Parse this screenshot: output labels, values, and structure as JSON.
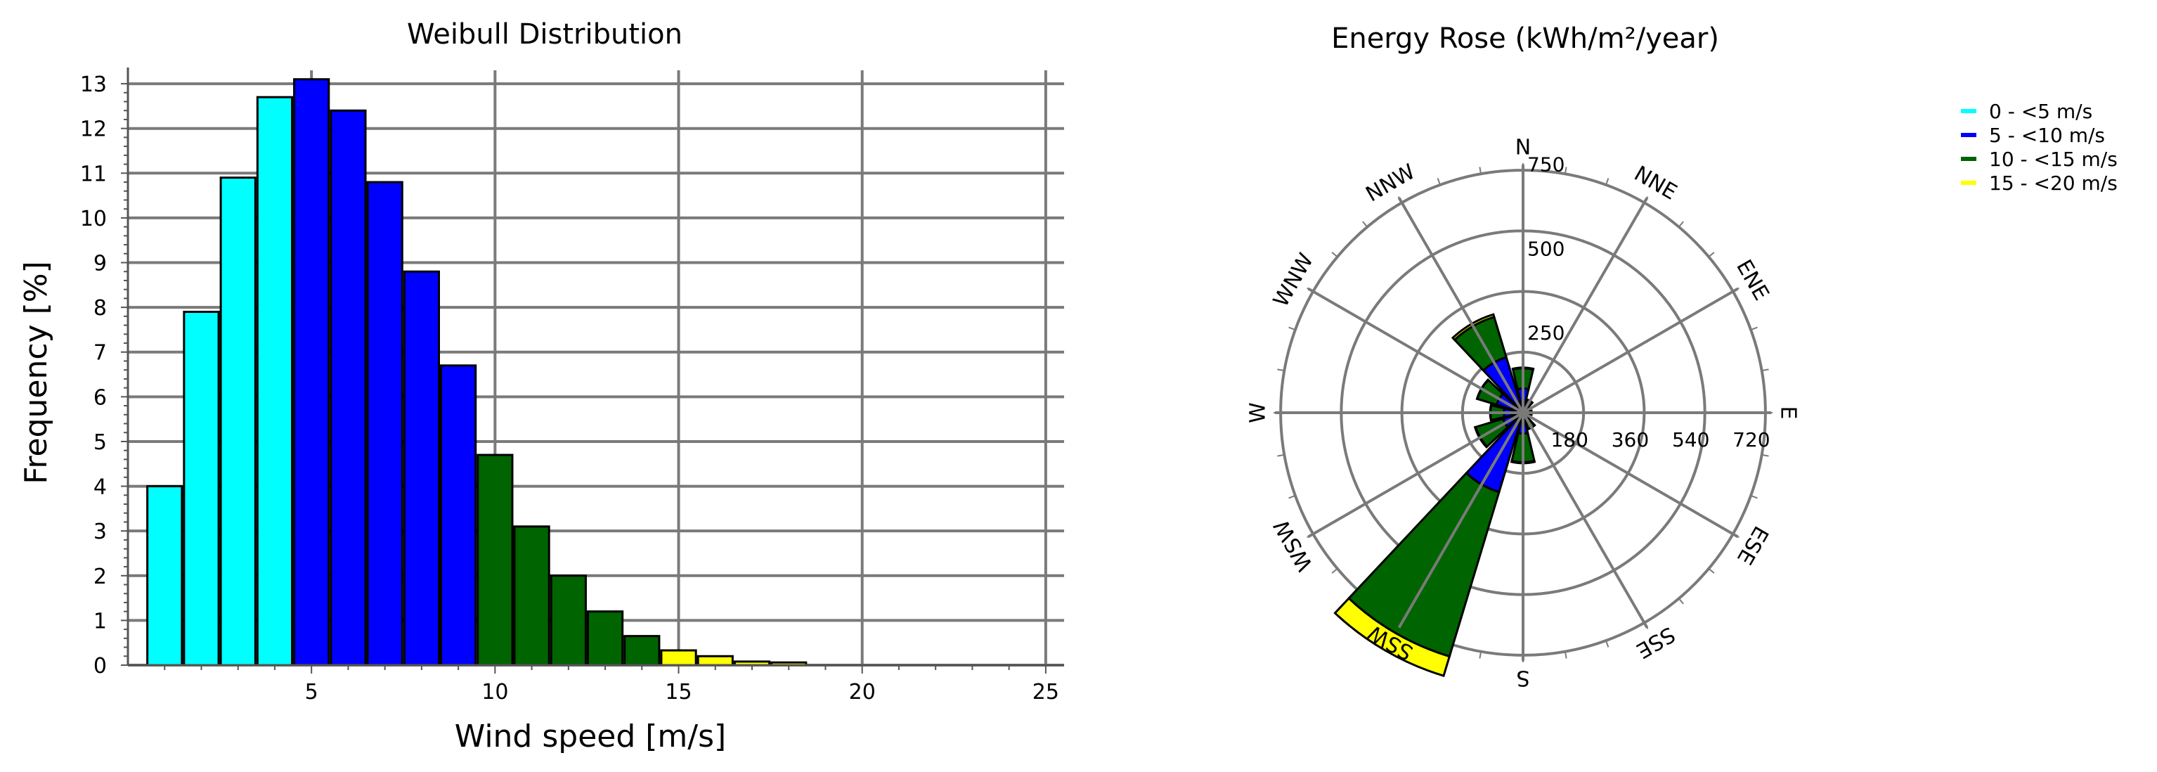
{
  "colors": {
    "cyan": "#00ffff",
    "blue": "#0000ff",
    "green": "#006400",
    "yellow": "#ffff00",
    "grid": "#7a7a7a"
  },
  "chart_data": [
    {
      "type": "bar",
      "title": "Weibull Distribution",
      "xlabel": "Wind speed [m/s]",
      "ylabel": "Frequency [%]",
      "xlim": [
        0,
        25.5
      ],
      "ylim": [
        0,
        13.3
      ],
      "xticks": [
        "5",
        "10",
        "15",
        "20",
        "25"
      ],
      "yticks": [
        "0",
        "1",
        "2",
        "3",
        "4",
        "5",
        "6",
        "7",
        "8",
        "9",
        "10",
        "11",
        "12",
        "13"
      ],
      "grid": true,
      "bin_width": 1,
      "x": [
        1,
        2,
        3,
        4,
        5,
        6,
        7,
        8,
        9,
        10,
        11,
        12,
        13,
        14,
        15,
        16,
        17,
        18
      ],
      "values": [
        4.0,
        7.9,
        10.9,
        12.7,
        13.1,
        12.4,
        10.8,
        8.8,
        6.7,
        4.7,
        3.1,
        2.0,
        1.2,
        0.65,
        0.33,
        0.2,
        0.08,
        0.06
      ],
      "bin_color_keys": [
        "cyan",
        "cyan",
        "cyan",
        "cyan",
        "blue",
        "blue",
        "blue",
        "blue",
        "blue",
        "green",
        "green",
        "green",
        "green",
        "green",
        "yellow",
        "yellow",
        "yellow",
        "yellow"
      ]
    },
    {
      "type": "wind-rose",
      "title": "Energy Rose (kWh/m²/year)",
      "directions": [
        "N",
        "NNE",
        "ENE",
        "E",
        "ESE",
        "SSE",
        "S",
        "SSW",
        "WSW",
        "W",
        "WNW",
        "NNW"
      ],
      "radial_max": 810,
      "radial_ticks_vertical": [
        "250",
        "500",
        "750"
      ],
      "radial_ticks_horizontal": [
        "180",
        "360",
        "540",
        "720"
      ],
      "ring_values": [
        180,
        360,
        540,
        720
      ],
      "series": [
        {
          "name": "0 - <5 m/s",
          "color_key": "cyan",
          "values": [
            2,
            1,
            1,
            1,
            1,
            1,
            2,
            6,
            2,
            2,
            2,
            2
          ]
        },
        {
          "name": "5 - <10 m/s",
          "color_key": "blue",
          "values": [
            70,
            25,
            10,
            15,
            10,
            30,
            60,
            240,
            60,
            55,
            80,
            170
          ]
        },
        {
          "name": "10 - <15 m/s",
          "color_key": "green",
          "values": [
            60,
            15,
            5,
            10,
            5,
            20,
            85,
            510,
            85,
            40,
            60,
            125
          ]
        },
        {
          "name": "15 - <20 m/s",
          "color_key": "yellow",
          "values": [
            2,
            0,
            0,
            0,
            0,
            0,
            3,
            60,
            2,
            1,
            1,
            8
          ]
        }
      ]
    }
  ],
  "legend": [
    {
      "label": "0 - <5 m/s",
      "color_key": "cyan"
    },
    {
      "label": "5 - <10 m/s",
      "color_key": "blue"
    },
    {
      "label": "10 - <15 m/s",
      "color_key": "green"
    },
    {
      "label": "15 - <20 m/s",
      "color_key": "yellow"
    }
  ]
}
